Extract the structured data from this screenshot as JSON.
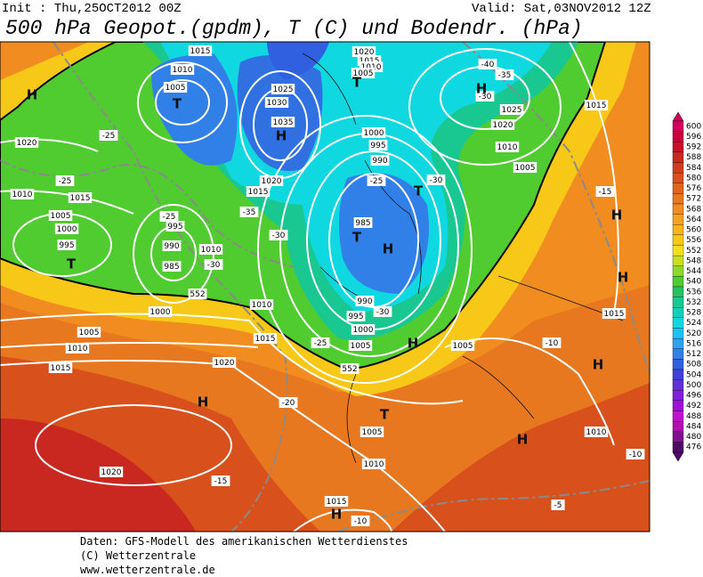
{
  "header": {
    "init": "Init : Thu,25OCT2012 00Z",
    "valid": "Valid: Sat,03NOV2012 12Z",
    "title": "500 hPa Geopot.(gpdm), T (C) und Bodendr. (hPa)"
  },
  "map": {
    "isobar_labels": [
      1020,
      1010,
      1005,
      1000,
      995,
      1015,
      1010,
      1005,
      1015,
      1025,
      1030,
      1035,
      1020,
      1015,
      1000,
      995,
      990,
      985,
      990,
      995,
      1000,
      1005,
      1010,
      1015,
      1000,
      1005,
      1010,
      1015,
      1020,
      1025,
      1020,
      1010,
      1005,
      1015,
      1005,
      1015,
      1010,
      1005,
      1010,
      1020,
      1015,
      1020,
      1015,
      1010,
      1005,
      995,
      990,
      985,
      1010
    ],
    "temperature_labels": [
      -25,
      -25,
      -25,
      -30,
      -35,
      -30,
      -25,
      -30,
      -30,
      -25,
      -20,
      -15,
      -10,
      -5,
      -10,
      -10,
      -15,
      -30,
      -35,
      -40
    ],
    "pressure_centers": [
      "H",
      "T",
      "T",
      "H",
      "T",
      "H",
      "T",
      "T",
      "H",
      "H",
      "H",
      "T",
      "H",
      "H",
      "H",
      "H",
      "H"
    ],
    "contour_labels": [
      552,
      552
    ]
  },
  "colorbar": {
    "labels": [
      600,
      596,
      592,
      588,
      584,
      580,
      576,
      572,
      568,
      564,
      560,
      556,
      552,
      548,
      544,
      540,
      536,
      532,
      528,
      524,
      520,
      516,
      512,
      508,
      504,
      500,
      496,
      492,
      488,
      484,
      480,
      476
    ],
    "colors": [
      "#d4005c",
      "#c8003c",
      "#c8102a",
      "#c82820",
      "#d03c1c",
      "#d8501c",
      "#e0641c",
      "#e87820",
      "#f08c20",
      "#f4a020",
      "#f8b41c",
      "#f8c818",
      "#f0e020",
      "#c8e020",
      "#90d828",
      "#50cc30",
      "#28c060",
      "#18c890",
      "#10d0b8",
      "#10d8e0",
      "#20c0f0",
      "#30a0f0",
      "#3080e8",
      "#3060e0",
      "#4040d8",
      "#6030d8",
      "#8020d8",
      "#a010d8",
      "#c010d0",
      "#b010b0",
      "#801090",
      "#500868"
    ]
  },
  "footer": {
    "lines": [
      "Daten: GFS-Modell des amerikanischen Wetterdienstes",
      "(C) Wetterzentrale",
      "www.wetterzentrale.de"
    ]
  }
}
